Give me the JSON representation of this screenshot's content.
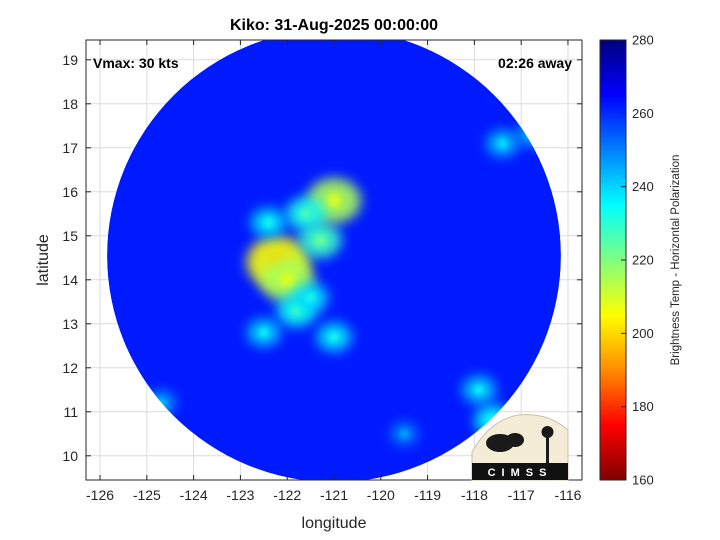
{
  "chart_data": {
    "type": "heatmap",
    "title": "Kiko: 31-Aug-2025 00:00:00",
    "xlabel": "longitude",
    "ylabel": "latitude",
    "xlim": [
      -126.3,
      -115.7
    ],
    "ylim": [
      9.45,
      19.45
    ],
    "xticks": [
      -126,
      -125,
      -124,
      -123,
      -122,
      -121,
      -120,
      -119,
      -118,
      -117,
      -116
    ],
    "yticks": [
      10,
      11,
      12,
      13,
      14,
      15,
      16,
      17,
      18,
      19
    ],
    "grid": true,
    "annotations": {
      "vmax": "Vmax: 30 kts",
      "time_away": "02:26 away"
    },
    "colorbar": {
      "label": "Brightness Temp - Horizontal Polarization",
      "range": [
        160,
        280
      ],
      "ticks": [
        160,
        180,
        200,
        220,
        240,
        260,
        280
      ],
      "colors": [
        "#7f0000",
        "#ff0000",
        "#ff8c00",
        "#ffff00",
        "#80ff80",
        "#00ffff",
        "#0080ff",
        "#0000ff",
        "#00007f"
      ]
    },
    "swath": {
      "center": [
        -121,
        14.55
      ],
      "radius_x_deg": 4.85,
      "radius_y_deg": 5.15,
      "background_temp": 262
    },
    "cold_features": [
      {
        "lon": -122.2,
        "lat": 14.4,
        "temp": 205
      },
      {
        "lon": -122.0,
        "lat": 14.0,
        "temp": 215
      },
      {
        "lon": -121.3,
        "lat": 14.9,
        "temp": 228
      },
      {
        "lon": -121.0,
        "lat": 15.8,
        "temp": 215
      },
      {
        "lon": -121.6,
        "lat": 15.5,
        "temp": 232
      },
      {
        "lon": -122.4,
        "lat": 15.3,
        "temp": 238
      },
      {
        "lon": -121.8,
        "lat": 13.3,
        "temp": 233
      },
      {
        "lon": -121.5,
        "lat": 13.6,
        "temp": 238
      },
      {
        "lon": -121.0,
        "lat": 12.7,
        "temp": 238
      },
      {
        "lon": -122.5,
        "lat": 12.8,
        "temp": 240
      },
      {
        "lon": -117.9,
        "lat": 11.5,
        "temp": 240
      },
      {
        "lon": -117.6,
        "lat": 10.8,
        "temp": 235
      },
      {
        "lon": -117.4,
        "lat": 17.1,
        "temp": 242
      },
      {
        "lon": -116.8,
        "lat": 17.3,
        "temp": 245
      },
      {
        "lon": -124.7,
        "lat": 11.2,
        "temp": 245
      },
      {
        "lon": -119.5,
        "lat": 10.5,
        "temp": 248
      }
    ],
    "logo_text": "CIMSS"
  }
}
